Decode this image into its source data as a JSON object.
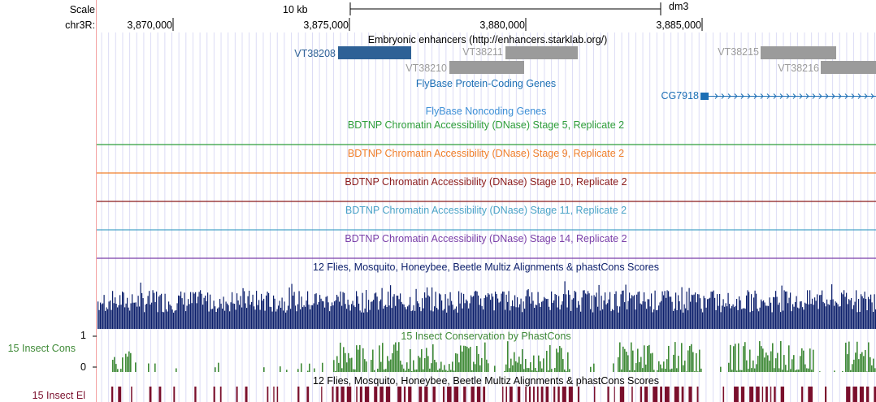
{
  "ruler": {
    "scale_label": "Scale",
    "chrom_label": "chr3R:",
    "scale_bar_label": "10 kb",
    "assembly": "dm3",
    "positions": [
      "3,870,000",
      "3,875,000",
      "3,880,000",
      "3,885,000"
    ]
  },
  "tracks": {
    "enhancers": {
      "title": "Embryonic enhancers (http://enhancers.starklab.org/)",
      "items": [
        {
          "name": "VT38208",
          "color": "#2e6196"
        },
        {
          "name": "VT38211",
          "color": "#9b9b9b"
        },
        {
          "name": "VT38210",
          "color": "#9b9b9b"
        },
        {
          "name": "VT38215",
          "color": "#9b9b9b"
        },
        {
          "name": "VT38216",
          "color": "#9b9b9b"
        }
      ]
    },
    "flybase_coding": {
      "title": "FlyBase Protein-Coding Genes",
      "color": "#1c6fb5",
      "gene": "CG7918"
    },
    "flybase_noncoding": {
      "title": "FlyBase Noncoding Genes",
      "color": "#3d8fd6"
    },
    "dnase": [
      {
        "title": "BDTNP Chromatin Accessibility (DNase) Stage 5, Replicate 2",
        "color": "#2e9e3a"
      },
      {
        "title": "BDTNP Chromatin Accessibility (DNase) Stage 9, Replicate 2",
        "color": "#f07f2a"
      },
      {
        "title": "BDTNP Chromatin Accessibility (DNase) Stage 10, Replicate 2",
        "color": "#8b1a1a"
      },
      {
        "title": "BDTNP Chromatin Accessibility (DNase) Stage 11, Replicate 2",
        "color": "#4aa3c7"
      },
      {
        "title": "BDTNP Chromatin Accessibility (DNase) Stage 14, Replicate 2",
        "color": "#7b3fa8"
      }
    ],
    "multiz": {
      "title": "12 Flies, Mosquito, Honeybee, Beetle Multiz Alignments & phastCons Scores",
      "color": "#0c1f6b"
    },
    "phastcons": {
      "title": "15 Insect Conservation by PhastCons",
      "left_label": "15 Insect Cons",
      "ymax": "1",
      "ymin": "0",
      "color": "#3f8a37"
    },
    "elements": {
      "title": "12 Flies, Mosquito, Honeybee, Beetle Multiz Alignments & phastCons Scores",
      "left_label": "15 Insect El",
      "color": "#7a0f2c"
    }
  }
}
